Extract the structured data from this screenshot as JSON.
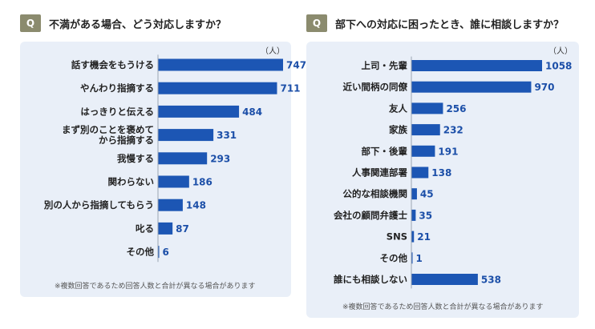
{
  "charts": [
    {
      "badge": "Q",
      "title": "不満がある場合、どう対応しますか？",
      "unit": "（人）",
      "note": "※複数回答であるため回答人数と合計が異なる場合があります"
    },
    {
      "badge": "Q",
      "title": "部下への対応に困ったとき、誰に相談しますか？",
      "unit": "（人）",
      "note": "※複数回答であるため回答人数と合計が異なる場合があります"
    }
  ],
  "colors": {
    "bar": "#1c56b4",
    "value": "#1c4fa8",
    "panel": "#e9eff8",
    "badge": "#8b8b6e"
  },
  "chart_data": [
    {
      "type": "bar",
      "orientation": "horizontal",
      "title": "不満がある場合、どう対応しますか？",
      "unit": "（人）",
      "categories": [
        [
          "話す機会をもうける"
        ],
        [
          "やんわり指摘する"
        ],
        [
          "はっきりと伝える"
        ],
        [
          "まず別のことを褒めて",
          "から指摘する"
        ],
        [
          "我慢する"
        ],
        [
          "関わらない"
        ],
        [
          "別の人から指摘してもらう"
        ],
        [
          "叱る"
        ],
        [
          "その他"
        ]
      ],
      "values": [
        747,
        711,
        484,
        331,
        293,
        186,
        148,
        87,
        6
      ],
      "xlim": [
        0,
        747
      ]
    },
    {
      "type": "bar",
      "orientation": "horizontal",
      "title": "部下への対応に困ったとき、誰に相談しますか？",
      "unit": "（人）",
      "categories": [
        [
          "上司・先輩"
        ],
        [
          "近い間柄の同僚"
        ],
        [
          "友人"
        ],
        [
          "家族"
        ],
        [
          "部下・後輩"
        ],
        [
          "人事関連部署"
        ],
        [
          "公的な相談機関"
        ],
        [
          "会社の顧問弁護士"
        ],
        [
          "SNS"
        ],
        [
          "その他"
        ],
        [
          "誰にも相談しない"
        ]
      ],
      "values": [
        1058,
        970,
        256,
        232,
        191,
        138,
        45,
        35,
        21,
        1,
        538
      ],
      "xlim": [
        0,
        1058
      ]
    }
  ]
}
